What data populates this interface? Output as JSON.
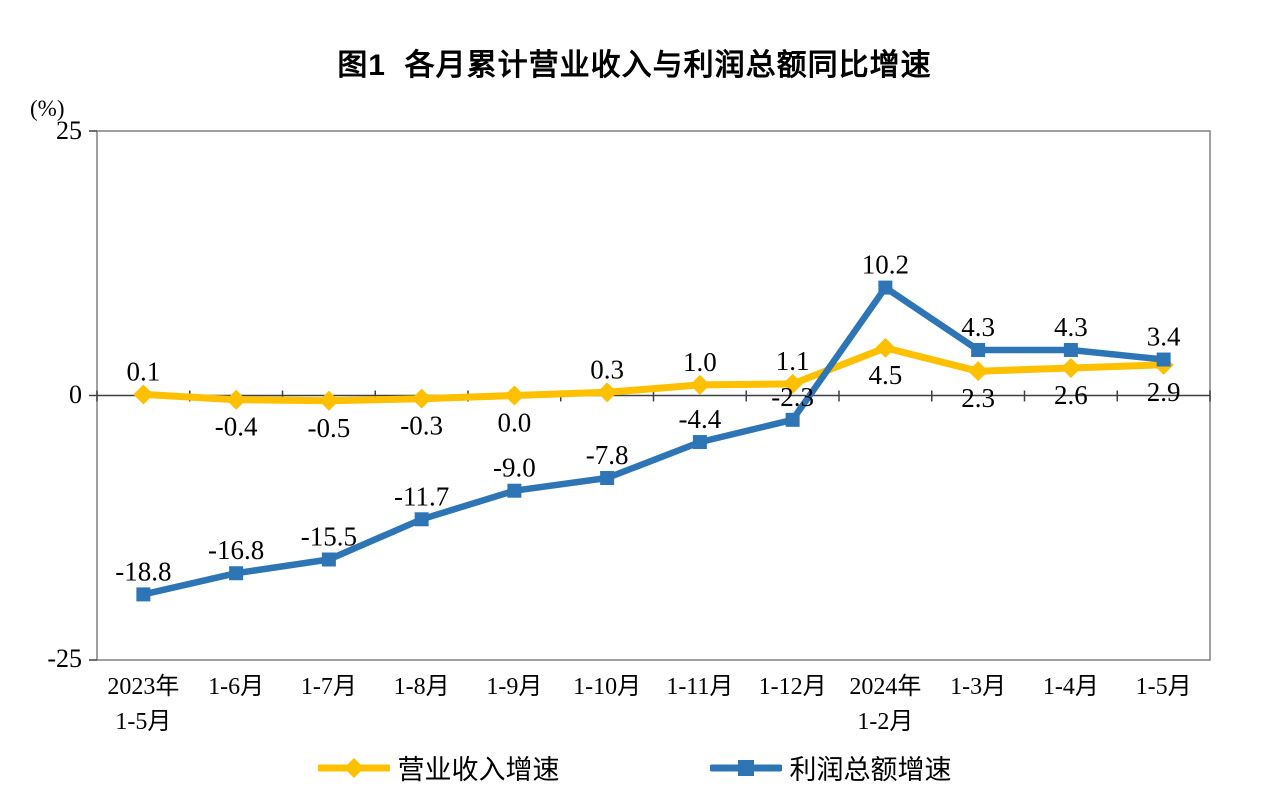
{
  "title": "图1  各月累计营业收入与利润总额同比增速",
  "y_axis": {
    "unit": "(%)",
    "ticks": [
      "25",
      "0",
      "-25"
    ]
  },
  "legend": [
    {
      "label": "营业收入增速",
      "color": "#FFC000",
      "marker": "diamond"
    },
    {
      "label": "利润总额增速",
      "color": "#2E75B6",
      "marker": "square"
    }
  ],
  "chart_data": {
    "type": "line",
    "title": "图1  各月累计营业收入与利润总额同比增速",
    "ylabel": "(%)",
    "xlabel": "",
    "ylim": [
      -25,
      25
    ],
    "y_ticks": [
      25,
      0,
      -25
    ],
    "grid": false,
    "legend_position": "bottom",
    "categories": [
      "2023年\n1-5月",
      "1-6月",
      "1-7月",
      "1-8月",
      "1-9月",
      "1-10月",
      "1-11月",
      "1-12月",
      "2024年\n1-2月",
      "1-3月",
      "1-4月",
      "1-5月"
    ],
    "series": [
      {
        "name": "营业收入增速",
        "color": "#FFC000",
        "marker": "diamond",
        "values": [
          0.1,
          -0.4,
          -0.5,
          -0.3,
          0.0,
          0.3,
          1.0,
          1.1,
          4.5,
          2.3,
          2.6,
          2.9
        ],
        "label_positions": [
          "above",
          "below",
          "below",
          "below",
          "below",
          "above",
          "above",
          "above",
          "below",
          "below",
          "below",
          "below"
        ]
      },
      {
        "name": "利润总额增速",
        "color": "#2E75B6",
        "marker": "square",
        "values": [
          -18.8,
          -16.8,
          -15.5,
          -11.7,
          -9.0,
          -7.8,
          -4.4,
          -2.3,
          10.2,
          4.3,
          4.3,
          3.4
        ],
        "label_positions": [
          "above",
          "above",
          "above",
          "above",
          "above",
          "above",
          "above",
          "above",
          "above",
          "above",
          "above",
          "above"
        ]
      }
    ]
  }
}
